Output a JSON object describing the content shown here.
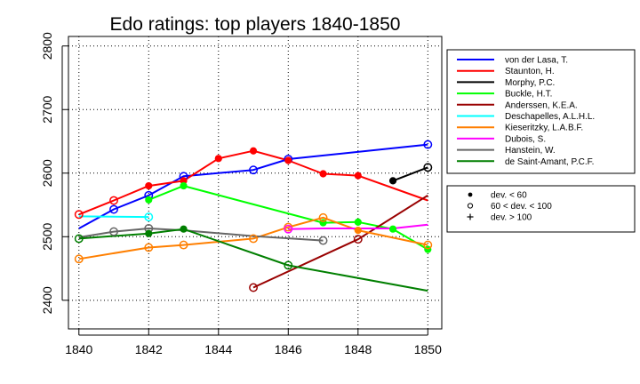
{
  "chart_data": {
    "type": "line",
    "title": "Edo ratings: top players 1840-1850",
    "xlabel": "",
    "ylabel": "",
    "xlim": [
      1839.7,
      1850.4
    ],
    "ylim": [
      2355,
      2815
    ],
    "xticks": [
      1840,
      1842,
      1844,
      1846,
      1848,
      1850
    ],
    "yticks": [
      2400,
      2500,
      2600,
      2700,
      2800
    ],
    "grid": true,
    "legend_position": "right",
    "series": [
      {
        "name": "von der Lasa, T.",
        "color": "#0000ff",
        "points": [
          [
            1840,
            2513,
            "none"
          ],
          [
            1841,
            2543,
            "open"
          ],
          [
            1842,
            2565,
            "open"
          ],
          [
            1843,
            2595,
            "open"
          ],
          [
            1845,
            2605,
            "open"
          ],
          [
            1846,
            2622,
            "open"
          ],
          [
            1850,
            2645,
            "open"
          ]
        ]
      },
      {
        "name": "Staunton, H.",
        "color": "#ff0000",
        "points": [
          [
            1840,
            2535,
            "open"
          ],
          [
            1841,
            2557,
            "open"
          ],
          [
            1842,
            2580,
            "filled"
          ],
          [
            1843,
            2588,
            "filled"
          ],
          [
            1844,
            2623,
            "filled"
          ],
          [
            1845,
            2635,
            "filled"
          ],
          [
            1846,
            2620,
            "filled"
          ],
          [
            1847,
            2599,
            "filled"
          ],
          [
            1848,
            2596,
            "filled"
          ],
          [
            1850,
            2557,
            "none"
          ]
        ]
      },
      {
        "name": "Morphy, P.C.",
        "color": "#000000",
        "points": [
          [
            1849,
            2588,
            "filled"
          ],
          [
            1850,
            2609,
            "open"
          ]
        ]
      },
      {
        "name": "Buckle, H.T.",
        "color": "#00ff00",
        "points": [
          [
            1842,
            2558,
            "filled"
          ],
          [
            1843,
            2580,
            "filled"
          ],
          [
            1847,
            2522,
            "filled"
          ],
          [
            1848,
            2523,
            "filled"
          ],
          [
            1849,
            2512,
            "filled"
          ],
          [
            1850,
            2480,
            "filled"
          ]
        ]
      },
      {
        "name": "Anderssen, K.E.A.",
        "color": "#990000",
        "points": [
          [
            1845,
            2420,
            "open"
          ],
          [
            1848,
            2496,
            "open"
          ],
          [
            1850,
            2565,
            "none"
          ]
        ]
      },
      {
        "name": "Deschapelles, A.L.H.L.",
        "color": "#00ffff",
        "points": [
          [
            1840,
            2532,
            "none"
          ],
          [
            1842,
            2531,
            "open"
          ]
        ]
      },
      {
        "name": "Kieseritzky, L.A.B.F.",
        "color": "#ff7f00",
        "points": [
          [
            1840,
            2465,
            "open"
          ],
          [
            1842,
            2483,
            "open"
          ],
          [
            1843,
            2487,
            "open"
          ],
          [
            1845,
            2497,
            "open"
          ],
          [
            1846,
            2515,
            "open"
          ],
          [
            1847,
            2530,
            "open"
          ],
          [
            1848,
            2510,
            "filled"
          ],
          [
            1850,
            2487,
            "open"
          ]
        ]
      },
      {
        "name": "Dubois, S.",
        "color": "#ff00ff",
        "points": [
          [
            1846,
            2512,
            "open"
          ],
          [
            1847,
            2513,
            "none"
          ],
          [
            1848,
            2513,
            "none"
          ],
          [
            1849,
            2513,
            "none"
          ],
          [
            1850,
            2519,
            "none"
          ]
        ]
      },
      {
        "name": "Hanstein, W.",
        "color": "#666666",
        "points": [
          [
            1840,
            2499,
            "none"
          ],
          [
            1841,
            2508,
            "open"
          ],
          [
            1842,
            2513,
            "open"
          ],
          [
            1843,
            2510,
            "none"
          ],
          [
            1845,
            2501,
            "none"
          ],
          [
            1847,
            2494,
            "open"
          ]
        ]
      },
      {
        "name": "de Saint-Amant, P.C.F.",
        "color": "#007f00",
        "points": [
          [
            1840,
            2497,
            "open"
          ],
          [
            1842,
            2505,
            "filled"
          ],
          [
            1843,
            2512,
            "filled"
          ],
          [
            1846,
            2455,
            "open"
          ],
          [
            1850,
            2415,
            "none"
          ]
        ]
      }
    ],
    "marker_legend": [
      {
        "symbol": "filled",
        "label": "dev. < 60"
      },
      {
        "symbol": "open",
        "label": "60 < dev. < 100"
      },
      {
        "symbol": "plus",
        "label": "dev. > 100"
      }
    ]
  }
}
